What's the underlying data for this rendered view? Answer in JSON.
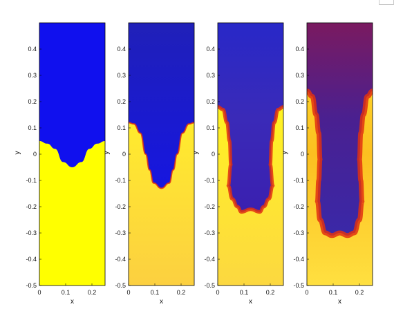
{
  "chart_data": [
    {
      "type": "heatmap",
      "panel": 1,
      "xlabel": "x",
      "ylabel": "y",
      "xlim": [
        0,
        0.25
      ],
      "ylim": [
        -0.5,
        0.5
      ],
      "xticks": [
        "0",
        "0.1",
        "0.2"
      ],
      "yticks": [
        "0.4",
        "0.3",
        "0.2",
        "0.1",
        "0",
        "-0.1",
        "-0.2",
        "-0.3",
        "-0.4",
        "-0.5"
      ],
      "interface": [
        [
          0,
          0.05
        ],
        [
          0.03,
          0.04
        ],
        [
          0.06,
          0.02
        ],
        [
          0.09,
          -0.03
        ],
        [
          0.125,
          -0.05
        ],
        [
          0.16,
          -0.03
        ],
        [
          0.19,
          0.02
        ],
        [
          0.22,
          0.04
        ],
        [
          0.25,
          0.05
        ]
      ],
      "regions": [
        {
          "fluid": "light (top)",
          "color": "#1010ee"
        },
        {
          "fluid": "heavy (bottom)",
          "color": "#ffff00"
        }
      ]
    },
    {
      "type": "heatmap",
      "panel": 2,
      "xlabel": "x",
      "ylabel": "y",
      "xlim": [
        0,
        0.25
      ],
      "ylim": [
        -0.5,
        0.5
      ],
      "xticks": [
        "0",
        "0.1",
        "0.2"
      ],
      "yticks": [
        "0.4",
        "0.3",
        "0.2",
        "0.1",
        "0",
        "-0.1",
        "-0.2",
        "-0.3",
        "-0.4",
        "-0.5"
      ],
      "interface": [
        [
          0,
          0.12
        ],
        [
          0.02,
          0.115
        ],
        [
          0.045,
          0.08
        ],
        [
          0.065,
          0.0
        ],
        [
          0.08,
          -0.06
        ],
        [
          0.095,
          -0.11
        ],
        [
          0.125,
          -0.13
        ],
        [
          0.155,
          -0.11
        ],
        [
          0.17,
          -0.06
        ],
        [
          0.185,
          0.0
        ],
        [
          0.205,
          0.08
        ],
        [
          0.23,
          0.115
        ],
        [
          0.25,
          0.12
        ]
      ],
      "regions": [
        {
          "fluid": "light (top)",
          "color": "#1a1ad0"
        },
        {
          "fluid": "heavy (bottom)",
          "color": "#fcd838"
        }
      ]
    },
    {
      "type": "heatmap",
      "panel": 3,
      "xlabel": "x",
      "ylabel": "y",
      "xlim": [
        0,
        0.25
      ],
      "ylim": [
        -0.5,
        0.5
      ],
      "xticks": [
        "0",
        "0.1",
        "0.2"
      ],
      "yticks": [
        "0.4",
        "0.3",
        "0.2",
        "0.1",
        "0",
        "-0.1",
        "-0.2",
        "-0.3",
        "-0.4",
        "-0.5"
      ],
      "interface": [
        [
          0,
          0.18
        ],
        [
          0.02,
          0.17
        ],
        [
          0.035,
          0.12
        ],
        [
          0.045,
          0.05
        ],
        [
          0.05,
          -0.04
        ],
        [
          0.04,
          -0.12
        ],
        [
          0.055,
          -0.17
        ],
        [
          0.075,
          -0.2
        ],
        [
          0.09,
          -0.22
        ],
        [
          0.125,
          -0.21
        ],
        [
          0.16,
          -0.22
        ],
        [
          0.175,
          -0.2
        ],
        [
          0.195,
          -0.17
        ],
        [
          0.21,
          -0.12
        ],
        [
          0.2,
          -0.04
        ],
        [
          0.205,
          0.05
        ],
        [
          0.215,
          0.12
        ],
        [
          0.23,
          0.17
        ],
        [
          0.25,
          0.18
        ]
      ],
      "regions": [
        {
          "fluid": "light (top)",
          "color": "#2020d8"
        },
        {
          "fluid": "heavy (bottom)",
          "color": "#ffff10"
        }
      ]
    },
    {
      "type": "heatmap",
      "panel": 4,
      "xlabel": "x",
      "ylabel": "y",
      "xlim": [
        0,
        0.25
      ],
      "ylim": [
        -0.5,
        0.5
      ],
      "xticks": [
        "0",
        "0.1",
        "0.2"
      ],
      "yticks": [
        "0.4",
        "0.3",
        "0.2",
        "0.1",
        "0",
        "-0.1",
        "-0.2",
        "-0.3",
        "-0.4",
        "-0.5"
      ],
      "interface": [
        [
          0,
          0.24
        ],
        [
          0.02,
          0.22
        ],
        [
          0.035,
          0.15
        ],
        [
          0.045,
          0.08
        ],
        [
          0.05,
          -0.02
        ],
        [
          0.045,
          -0.1
        ],
        [
          0.04,
          -0.18
        ],
        [
          0.05,
          -0.25
        ],
        [
          0.07,
          -0.3
        ],
        [
          0.095,
          -0.31
        ],
        [
          0.125,
          -0.3
        ],
        [
          0.155,
          -0.31
        ],
        [
          0.18,
          -0.3
        ],
        [
          0.2,
          -0.25
        ],
        [
          0.21,
          -0.18
        ],
        [
          0.205,
          -0.1
        ],
        [
          0.2,
          -0.02
        ],
        [
          0.205,
          0.08
        ],
        [
          0.215,
          0.15
        ],
        [
          0.23,
          0.22
        ],
        [
          0.25,
          0.24
        ]
      ],
      "regions": [
        {
          "fluid": "light (top)",
          "color": "#5a1a80"
        },
        {
          "fluid": "heavy (bottom)",
          "color": "#ffd820"
        }
      ]
    }
  ],
  "colors": {
    "light_fluid": "#1010ee",
    "heavy_fluid": "#ffff00",
    "mixing_front": "#e03010",
    "frame": "#000000"
  }
}
